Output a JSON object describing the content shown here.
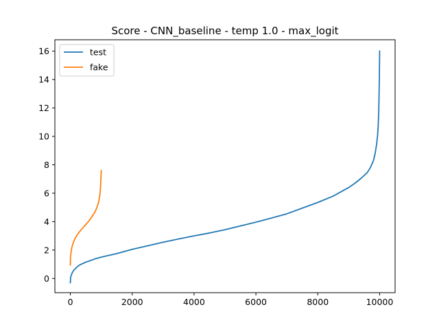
{
  "chart_data": {
    "type": "line",
    "title": "Score - CNN_baseline - temp 1.0 - max_logit",
    "xlabel": "",
    "ylabel": "",
    "xlim": [
      -500,
      10500
    ],
    "ylim": [
      -1.0,
      16.8
    ],
    "xticks": [
      0,
      2000,
      4000,
      6000,
      8000,
      10000
    ],
    "yticks": [
      0,
      2,
      4,
      6,
      8,
      10,
      12,
      14,
      16
    ],
    "grid": false,
    "legend": "top-left",
    "series": [
      {
        "name": "test",
        "color": "#1f77b4",
        "x": [
          0,
          10,
          50,
          100,
          200,
          300,
          400,
          500,
          600,
          700,
          800,
          1000,
          1500,
          2000,
          2500,
          3000,
          3500,
          4000,
          4500,
          5000,
          5500,
          6000,
          6500,
          7000,
          7500,
          8000,
          8500,
          9000,
          9200,
          9400,
          9600,
          9700,
          9800,
          9850,
          9900,
          9930,
          9950,
          9970,
          9980,
          9990,
          9995,
          10000
        ],
        "y": [
          -0.3,
          0.1,
          0.35,
          0.55,
          0.78,
          0.95,
          1.05,
          1.15,
          1.22,
          1.3,
          1.38,
          1.5,
          1.75,
          2.05,
          2.3,
          2.55,
          2.78,
          3.0,
          3.2,
          3.43,
          3.7,
          3.96,
          4.25,
          4.55,
          4.95,
          5.35,
          5.8,
          6.4,
          6.7,
          7.05,
          7.45,
          7.8,
          8.3,
          8.75,
          9.4,
          10.0,
          10.6,
          11.6,
          12.8,
          14.0,
          15.0,
          16.0
        ]
      },
      {
        "name": "fake",
        "color": "#ff7f0e",
        "x": [
          0,
          5,
          20,
          50,
          100,
          150,
          200,
          300,
          400,
          500,
          600,
          700,
          800,
          850,
          900,
          930,
          950,
          970,
          980,
          990,
          1000
        ],
        "y": [
          0.95,
          1.5,
          1.8,
          2.2,
          2.55,
          2.8,
          3.0,
          3.3,
          3.55,
          3.8,
          4.05,
          4.35,
          4.7,
          4.95,
          5.25,
          5.55,
          5.8,
          6.2,
          6.6,
          7.1,
          7.6
        ]
      }
    ]
  }
}
